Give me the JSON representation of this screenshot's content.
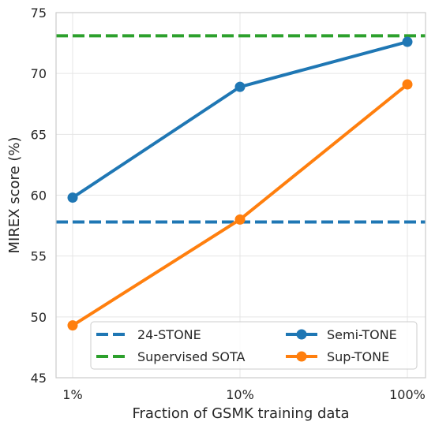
{
  "chart_data": {
    "type": "line",
    "xlabel": "Fraction of GSMK training data",
    "ylabel": "MIREX score (%)",
    "categories": [
      "1%",
      "10%",
      "100%"
    ],
    "ylim": [
      45,
      75
    ],
    "yticks": [
      45,
      50,
      55,
      60,
      65,
      70,
      75
    ],
    "grid": true,
    "legend_position": "lower-center",
    "series": [
      {
        "name": "Semi-TONE",
        "values": [
          59.8,
          68.9,
          72.6
        ],
        "color": "#1f77b4",
        "style": "solid",
        "marker": "circle"
      },
      {
        "name": "Sup-TONE",
        "values": [
          49.3,
          58.0,
          69.1
        ],
        "color": "#ff7f0e",
        "style": "solid",
        "marker": "circle"
      }
    ],
    "reference_lines": [
      {
        "name": "24-STONE",
        "value": 57.8,
        "color": "#1f77b4",
        "style": "dashed"
      },
      {
        "name": "Supervised SOTA",
        "value": 73.1,
        "color": "#2ca02c",
        "style": "dashed"
      }
    ]
  }
}
